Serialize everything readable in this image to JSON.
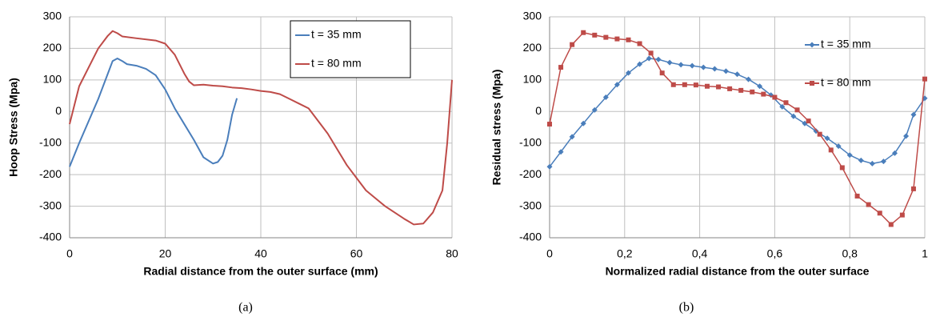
{
  "chart_data": [
    {
      "type": "line",
      "caption": "(a)",
      "x_label": "Radial distance from the outer surface (mm)",
      "y_label": "Hoop Stress (Mpa)",
      "xlim": [
        0,
        80
      ],
      "xticks": [
        0,
        20,
        40,
        60,
        80
      ],
      "ylim": [
        -400,
        300
      ],
      "yticks": [
        -400,
        -300,
        -200,
        -100,
        0,
        100,
        200,
        300
      ],
      "grid": true,
      "legend": "upper right",
      "legend_frame": true,
      "series": [
        {
          "name": "t = 35 mm",
          "color": "#4a7ebb",
          "x": [
            0,
            2,
            4,
            6,
            8,
            9,
            10,
            11,
            12,
            14,
            16,
            18,
            20,
            22,
            24,
            26,
            28,
            30,
            31,
            32,
            33,
            34,
            35
          ],
          "values": [
            -175,
            -100,
            -30,
            40,
            120,
            160,
            168,
            160,
            150,
            145,
            135,
            115,
            70,
            10,
            -40,
            -90,
            -145,
            -165,
            -160,
            -140,
            -90,
            -10,
            42
          ]
        },
        {
          "name": "t = 80 mm",
          "color": "#be4b48",
          "x": [
            0,
            1,
            2,
            4,
            6,
            8,
            9,
            10,
            11,
            14,
            18,
            20,
            22,
            24,
            25,
            26,
            28,
            30,
            32,
            34,
            36,
            38,
            40,
            42,
            44,
            46,
            48,
            50,
            52,
            54,
            56,
            58,
            60,
            62,
            64,
            66,
            68,
            70,
            72,
            74,
            76,
            78,
            79,
            80
          ],
          "values": [
            -40,
            20,
            80,
            140,
            200,
            240,
            255,
            248,
            238,
            232,
            225,
            215,
            180,
            120,
            95,
            83,
            85,
            82,
            80,
            76,
            74,
            70,
            65,
            62,
            55,
            40,
            25,
            10,
            -30,
            -70,
            -120,
            -170,
            -210,
            -250,
            -275,
            -300,
            -320,
            -340,
            -358,
            -355,
            -320,
            -250,
            -100,
            100
          ]
        }
      ]
    },
    {
      "type": "line",
      "caption": "(b)",
      "x_label": "Normalized radial distance from the outer surface",
      "y_label": "Residual stress (Mpa)",
      "xlim": [
        0,
        1
      ],
      "xticks": [
        0,
        {
          "value": 0.2,
          "label": "0,2"
        },
        {
          "value": 0.4,
          "label": "0,4"
        },
        {
          "value": 0.6,
          "label": "0,6"
        },
        {
          "value": 0.8,
          "label": "0,8"
        },
        1
      ],
      "ylim": [
        -400,
        300
      ],
      "yticks": [
        -400,
        -300,
        -200,
        -100,
        0,
        100,
        200,
        300
      ],
      "grid": true,
      "legend": "upper right",
      "legend_frame": false,
      "series": [
        {
          "name": "t = 35 mm",
          "color": "#4a7ebb",
          "marker": "diamond",
          "x": [
            0,
            0.03,
            0.06,
            0.09,
            0.12,
            0.15,
            0.18,
            0.21,
            0.24,
            0.265,
            0.29,
            0.32,
            0.35,
            0.38,
            0.41,
            0.44,
            0.47,
            0.5,
            0.53,
            0.56,
            0.59,
            0.62,
            0.65,
            0.68,
            0.71,
            0.74,
            0.77,
            0.8,
            0.83,
            0.86,
            0.89,
            0.92,
            0.95,
            0.97,
            1
          ],
          "values": [
            -175,
            -128,
            -80,
            -38,
            5,
            45,
            85,
            122,
            150,
            168,
            165,
            155,
            148,
            145,
            140,
            135,
            128,
            118,
            102,
            80,
            52,
            15,
            -15,
            -38,
            -62,
            -85,
            -110,
            -138,
            -155,
            -165,
            -158,
            -132,
            -78,
            -10,
            42
          ]
        },
        {
          "name": "t = 80 mm",
          "color": "#be4b48",
          "marker": "square",
          "x": [
            0,
            0.03,
            0.06,
            0.09,
            0.12,
            0.15,
            0.18,
            0.21,
            0.24,
            0.27,
            0.3,
            0.33,
            0.36,
            0.39,
            0.42,
            0.45,
            0.48,
            0.51,
            0.54,
            0.57,
            0.6,
            0.63,
            0.66,
            0.69,
            0.72,
            0.75,
            0.78,
            0.82,
            0.85,
            0.88,
            0.91,
            0.94,
            0.97,
            1
          ],
          "values": [
            -40,
            140,
            212,
            250,
            242,
            235,
            230,
            227,
            215,
            185,
            122,
            85,
            85,
            84,
            80,
            78,
            72,
            67,
            62,
            55,
            45,
            28,
            5,
            -30,
            -72,
            -122,
            -178,
            -268,
            -295,
            -322,
            -358,
            -328,
            -245,
            103
          ]
        }
      ]
    }
  ]
}
